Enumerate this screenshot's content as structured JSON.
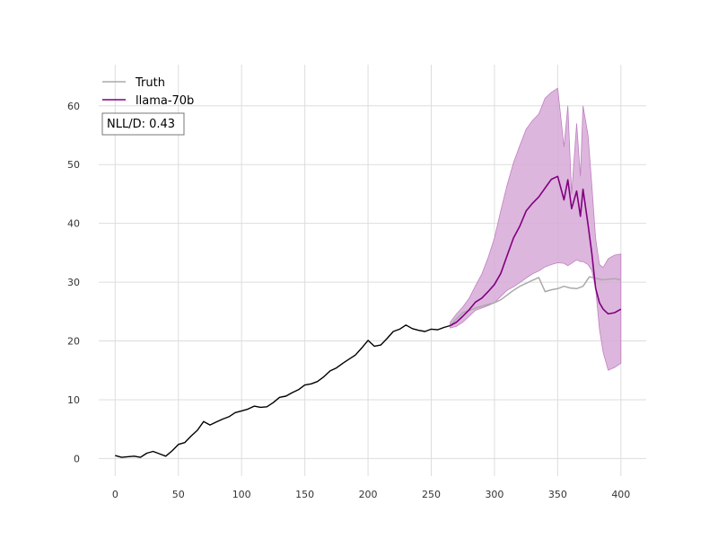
{
  "chart_data": {
    "type": "line",
    "title": "",
    "xlabel": "",
    "ylabel": "",
    "xlim": [
      -13,
      420
    ],
    "ylim": [
      -3,
      67
    ],
    "grid": true,
    "legend_placement": "top-left",
    "x_ticks": [
      0,
      50,
      100,
      150,
      200,
      250,
      300,
      350,
      400
    ],
    "y_ticks": [
      0,
      10,
      20,
      30,
      40,
      50,
      60
    ],
    "annotation": "NLL/D: 0.43",
    "colors": {
      "history": "#000000",
      "truth": "#aaaaaa",
      "forecast": "#800080",
      "band": "#d7a9d7",
      "grid": "#dddddd"
    },
    "legend": [
      {
        "label": "Truth",
        "color": "#aaaaaa"
      },
      {
        "label": "llama-70b",
        "color": "#800080"
      }
    ],
    "series": [
      {
        "role": "history",
        "x": [
          0,
          5,
          10,
          15,
          20,
          25,
          30,
          35,
          40,
          45,
          50,
          55,
          60,
          65,
          70,
          75,
          80,
          85,
          90,
          95,
          100,
          105,
          110,
          115,
          120,
          125,
          130,
          135,
          140,
          145,
          150,
          155,
          160,
          165,
          170,
          175,
          180,
          185,
          190,
          195,
          200,
          205,
          210,
          215,
          220,
          225,
          230,
          235,
          240,
          245,
          250,
          255,
          260,
          265
        ],
        "values": [
          0.5,
          0.2,
          0.3,
          0.4,
          0.2,
          0.9,
          1.2,
          0.8,
          0.4,
          1.3,
          2.4,
          2.7,
          3.8,
          4.8,
          6.3,
          5.7,
          6.2,
          6.7,
          7.1,
          7.8,
          8.1,
          8.4,
          8.9,
          8.7,
          8.8,
          9.5,
          10.4,
          10.6,
          11.2,
          11.7,
          12.5,
          12.7,
          13.1,
          13.9,
          14.9,
          15.4,
          16.2,
          16.9,
          17.6,
          18.8,
          20.1,
          19.1,
          19.3,
          20.4,
          21.6,
          22.0,
          22.7,
          22.1,
          21.8,
          21.6,
          22.0,
          21.9,
          22.3,
          22.6
        ]
      },
      {
        "name": "Truth",
        "x": [
          265,
          270,
          275,
          280,
          285,
          290,
          295,
          300,
          305,
          310,
          315,
          320,
          325,
          330,
          335,
          340,
          345,
          350,
          355,
          360,
          365,
          370,
          375,
          380,
          385,
          390,
          395,
          400
        ],
        "values": [
          22.6,
          23.8,
          24.8,
          25.2,
          25.6,
          25.9,
          26.2,
          26.5,
          27.0,
          27.8,
          28.6,
          29.3,
          29.8,
          30.3,
          30.8,
          28.4,
          28.7,
          28.9,
          29.3,
          29.0,
          28.9,
          29.3,
          30.9,
          30.7,
          30.4,
          30.5,
          30.6,
          30.4
        ]
      },
      {
        "name": "llama-70b",
        "x": [
          265,
          270,
          275,
          280,
          285,
          290,
          295,
          300,
          305,
          310,
          315,
          320,
          325,
          330,
          335,
          340,
          345,
          350,
          355,
          358,
          361,
          365,
          368,
          370,
          374,
          377,
          380,
          383,
          386,
          390,
          395,
          400
        ],
        "values": [
          22.6,
          23.2,
          24.2,
          25.3,
          26.6,
          27.3,
          28.4,
          29.6,
          31.5,
          34.5,
          37.5,
          39.5,
          42.1,
          43.4,
          44.5,
          46.0,
          47.5,
          48.0,
          44.0,
          47.4,
          42.5,
          45.5,
          41.2,
          45.8,
          39.8,
          34.9,
          29.0,
          26.5,
          25.4,
          24.6,
          24.8,
          25.4
        ]
      }
    ],
    "band": {
      "name": "llama-70b interval",
      "x": [
        265,
        270,
        275,
        280,
        285,
        290,
        295,
        300,
        305,
        310,
        315,
        320,
        325,
        330,
        335,
        340,
        345,
        350,
        355,
        358,
        361,
        365,
        368,
        370,
        374,
        377,
        380,
        383,
        386,
        390,
        395,
        400
      ],
      "upper": [
        23.2,
        24.6,
        25.8,
        27.3,
        29.4,
        31.4,
        34.2,
        37.5,
        42.2,
        46.5,
        50.3,
        53.2,
        56.0,
        57.5,
        58.6,
        61.3,
        62.3,
        63.0,
        53.0,
        60.0,
        45.0,
        57.0,
        48.0,
        60.0,
        55.0,
        46.5,
        37.5,
        33.0,
        32.5,
        34.0,
        34.6,
        34.8
      ],
      "lower": [
        22.2,
        22.5,
        23.2,
        24.2,
        25.2,
        25.6,
        26.0,
        26.5,
        27.6,
        28.6,
        29.2,
        29.9,
        30.7,
        31.4,
        31.9,
        32.6,
        33.0,
        33.3,
        33.2,
        32.8,
        33.2,
        33.8,
        33.5,
        33.5,
        33.0,
        32.0,
        29.0,
        22.0,
        18.0,
        15.0,
        15.5,
        16.2
      ]
    }
  }
}
